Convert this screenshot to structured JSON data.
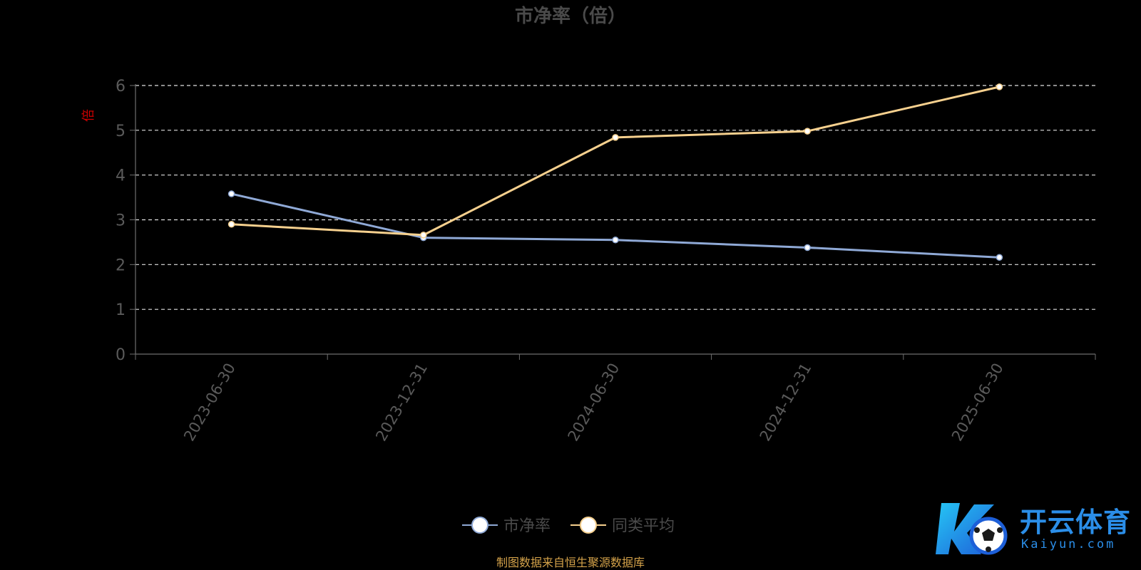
{
  "footer": {
    "source": "制图数据来自恒生聚源数据库"
  },
  "watermark": {
    "name": "开云体育",
    "url": "Kaiyun.com"
  },
  "chart_data": {
    "type": "line",
    "title": "市净率（倍）",
    "ylabel": "倍",
    "xlabel": "",
    "categories": [
      "2023-06-30",
      "2023-12-31",
      "2024-06-30",
      "2024-12-31",
      "2025-06-30"
    ],
    "yticks": [
      0,
      1,
      2,
      3,
      4,
      5,
      6
    ],
    "ylim": [
      0,
      6
    ],
    "grid": true,
    "legend_position": "bottom-center",
    "series": [
      {
        "name": "市净率",
        "color": "#8fa9d6",
        "values": [
          3.58,
          2.6,
          2.55,
          2.38,
          2.16
        ]
      },
      {
        "name": "同类平均",
        "color": "#f6d08e",
        "values": [
          2.9,
          2.66,
          4.84,
          4.98,
          5.97
        ]
      }
    ],
    "colors": {
      "background": "#000000",
      "axis": "#6e6e6e",
      "grid": "#e0e0e0",
      "tick_text": "#5a5a5a",
      "ylabel": "#d00000"
    }
  }
}
